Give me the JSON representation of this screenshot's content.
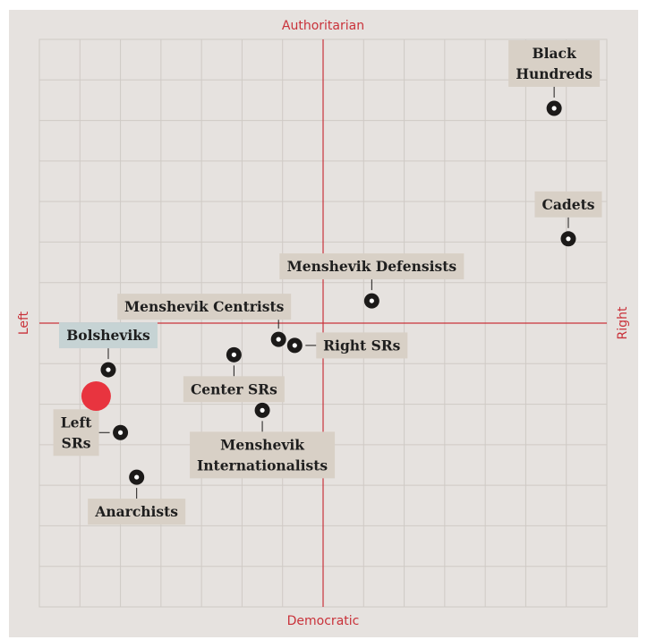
{
  "chart_data": {
    "type": "scatter",
    "title": "",
    "xlabel": "",
    "ylabel": "",
    "axis_labels": {
      "top": "Authoritarian",
      "bottom": "Democratic",
      "left": "Left",
      "right": "Right"
    },
    "xlim": [
      -7,
      7
    ],
    "ylim": [
      -7,
      7
    ],
    "grid": true,
    "colors": {
      "outer_background": "#e6e2df",
      "plot_background": "#e6e2df",
      "grid": "#cfcac5",
      "axes": "#c9323a",
      "marker": "#1c1a19",
      "marker_center": "#ffffff",
      "label_box": "#d8d0c6",
      "highlight_box": "#c6d3d4",
      "user_marker": "#e8343f"
    },
    "user_position": {
      "x": -5.6,
      "y": -1.8
    },
    "points": [
      {
        "name": "Black Hundreds",
        "lines": [
          "Black",
          "Hundreds"
        ],
        "x": 5.7,
        "y": 5.3,
        "label_pos": "above",
        "highlight": false
      },
      {
        "name": "Cadets",
        "lines": [
          "Cadets"
        ],
        "x": 6.05,
        "y": 2.08,
        "label_pos": "above",
        "highlight": false
      },
      {
        "name": "Menshevik Defensists",
        "lines": [
          "Menshevik Defensists"
        ],
        "x": 1.2,
        "y": 0.55,
        "label_pos": "above",
        "highlight": false
      },
      {
        "name": "Menshevik Centrists",
        "lines": [
          "Menshevik Centrists"
        ],
        "x": -1.1,
        "y": -0.4,
        "label_pos": "above-left",
        "highlight": false
      },
      {
        "name": "Right SRs",
        "lines": [
          "Right SRs"
        ],
        "x": -0.7,
        "y": -0.55,
        "label_pos": "right",
        "highlight": false
      },
      {
        "name": "Center SRs",
        "lines": [
          "Center SRs"
        ],
        "x": -2.2,
        "y": -0.78,
        "label_pos": "below",
        "highlight": false
      },
      {
        "name": "Bolsheviks",
        "lines": [
          "Bolsheviks"
        ],
        "x": -5.3,
        "y": -1.15,
        "label_pos": "above",
        "highlight": true
      },
      {
        "name": "Menshevik Internationalists",
        "lines": [
          "Menshevik",
          "Internationalists"
        ],
        "x": -1.5,
        "y": -2.15,
        "label_pos": "below",
        "highlight": false
      },
      {
        "name": "Left SRs",
        "lines": [
          "Left",
          "SRs"
        ],
        "x": -5.0,
        "y": -2.7,
        "label_pos": "left",
        "highlight": false
      },
      {
        "name": "Anarchists",
        "lines": [
          "Anarchists"
        ],
        "x": -4.6,
        "y": -3.8,
        "label_pos": "below",
        "highlight": false
      }
    ]
  }
}
